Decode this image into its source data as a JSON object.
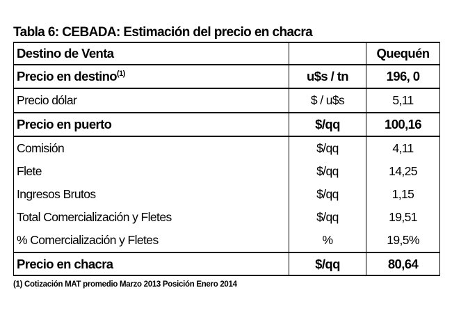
{
  "title": "Tabla 6: CEBADA: Estimación del precio en chacra",
  "header": {
    "label": "Destino de Venta",
    "unit": "",
    "place": "Quequén"
  },
  "rows": [
    {
      "label": "Precio en destino",
      "sup": "(1)",
      "unit": "u$s / tn",
      "value": "196, 0"
    },
    {
      "label": "Precio dólar",
      "unit": "$ / u$s",
      "value": "5,11"
    },
    {
      "label": "Precio en puerto",
      "unit": "$/qq",
      "value": "100,16"
    },
    {
      "label": "Comisión",
      "unit": "$/qq",
      "value": "4,11"
    },
    {
      "label": "Flete",
      "unit": "$/qq",
      "value": "14,25"
    },
    {
      "label": "Ingresos Brutos",
      "unit": "$/qq",
      "value": "1,15"
    },
    {
      "label": "Total Comercialización y Fletes",
      "unit": "$/qq",
      "value": "19,51"
    },
    {
      "label": "% Comercialización y Fletes",
      "unit": "%",
      "value": "19,5%"
    },
    {
      "label": "Precio en chacra",
      "unit": "$/qq",
      "value": "80,64"
    }
  ],
  "footnote": "(1) Cotización MAT promedio Marzo 2013 Posición Enero 2014"
}
